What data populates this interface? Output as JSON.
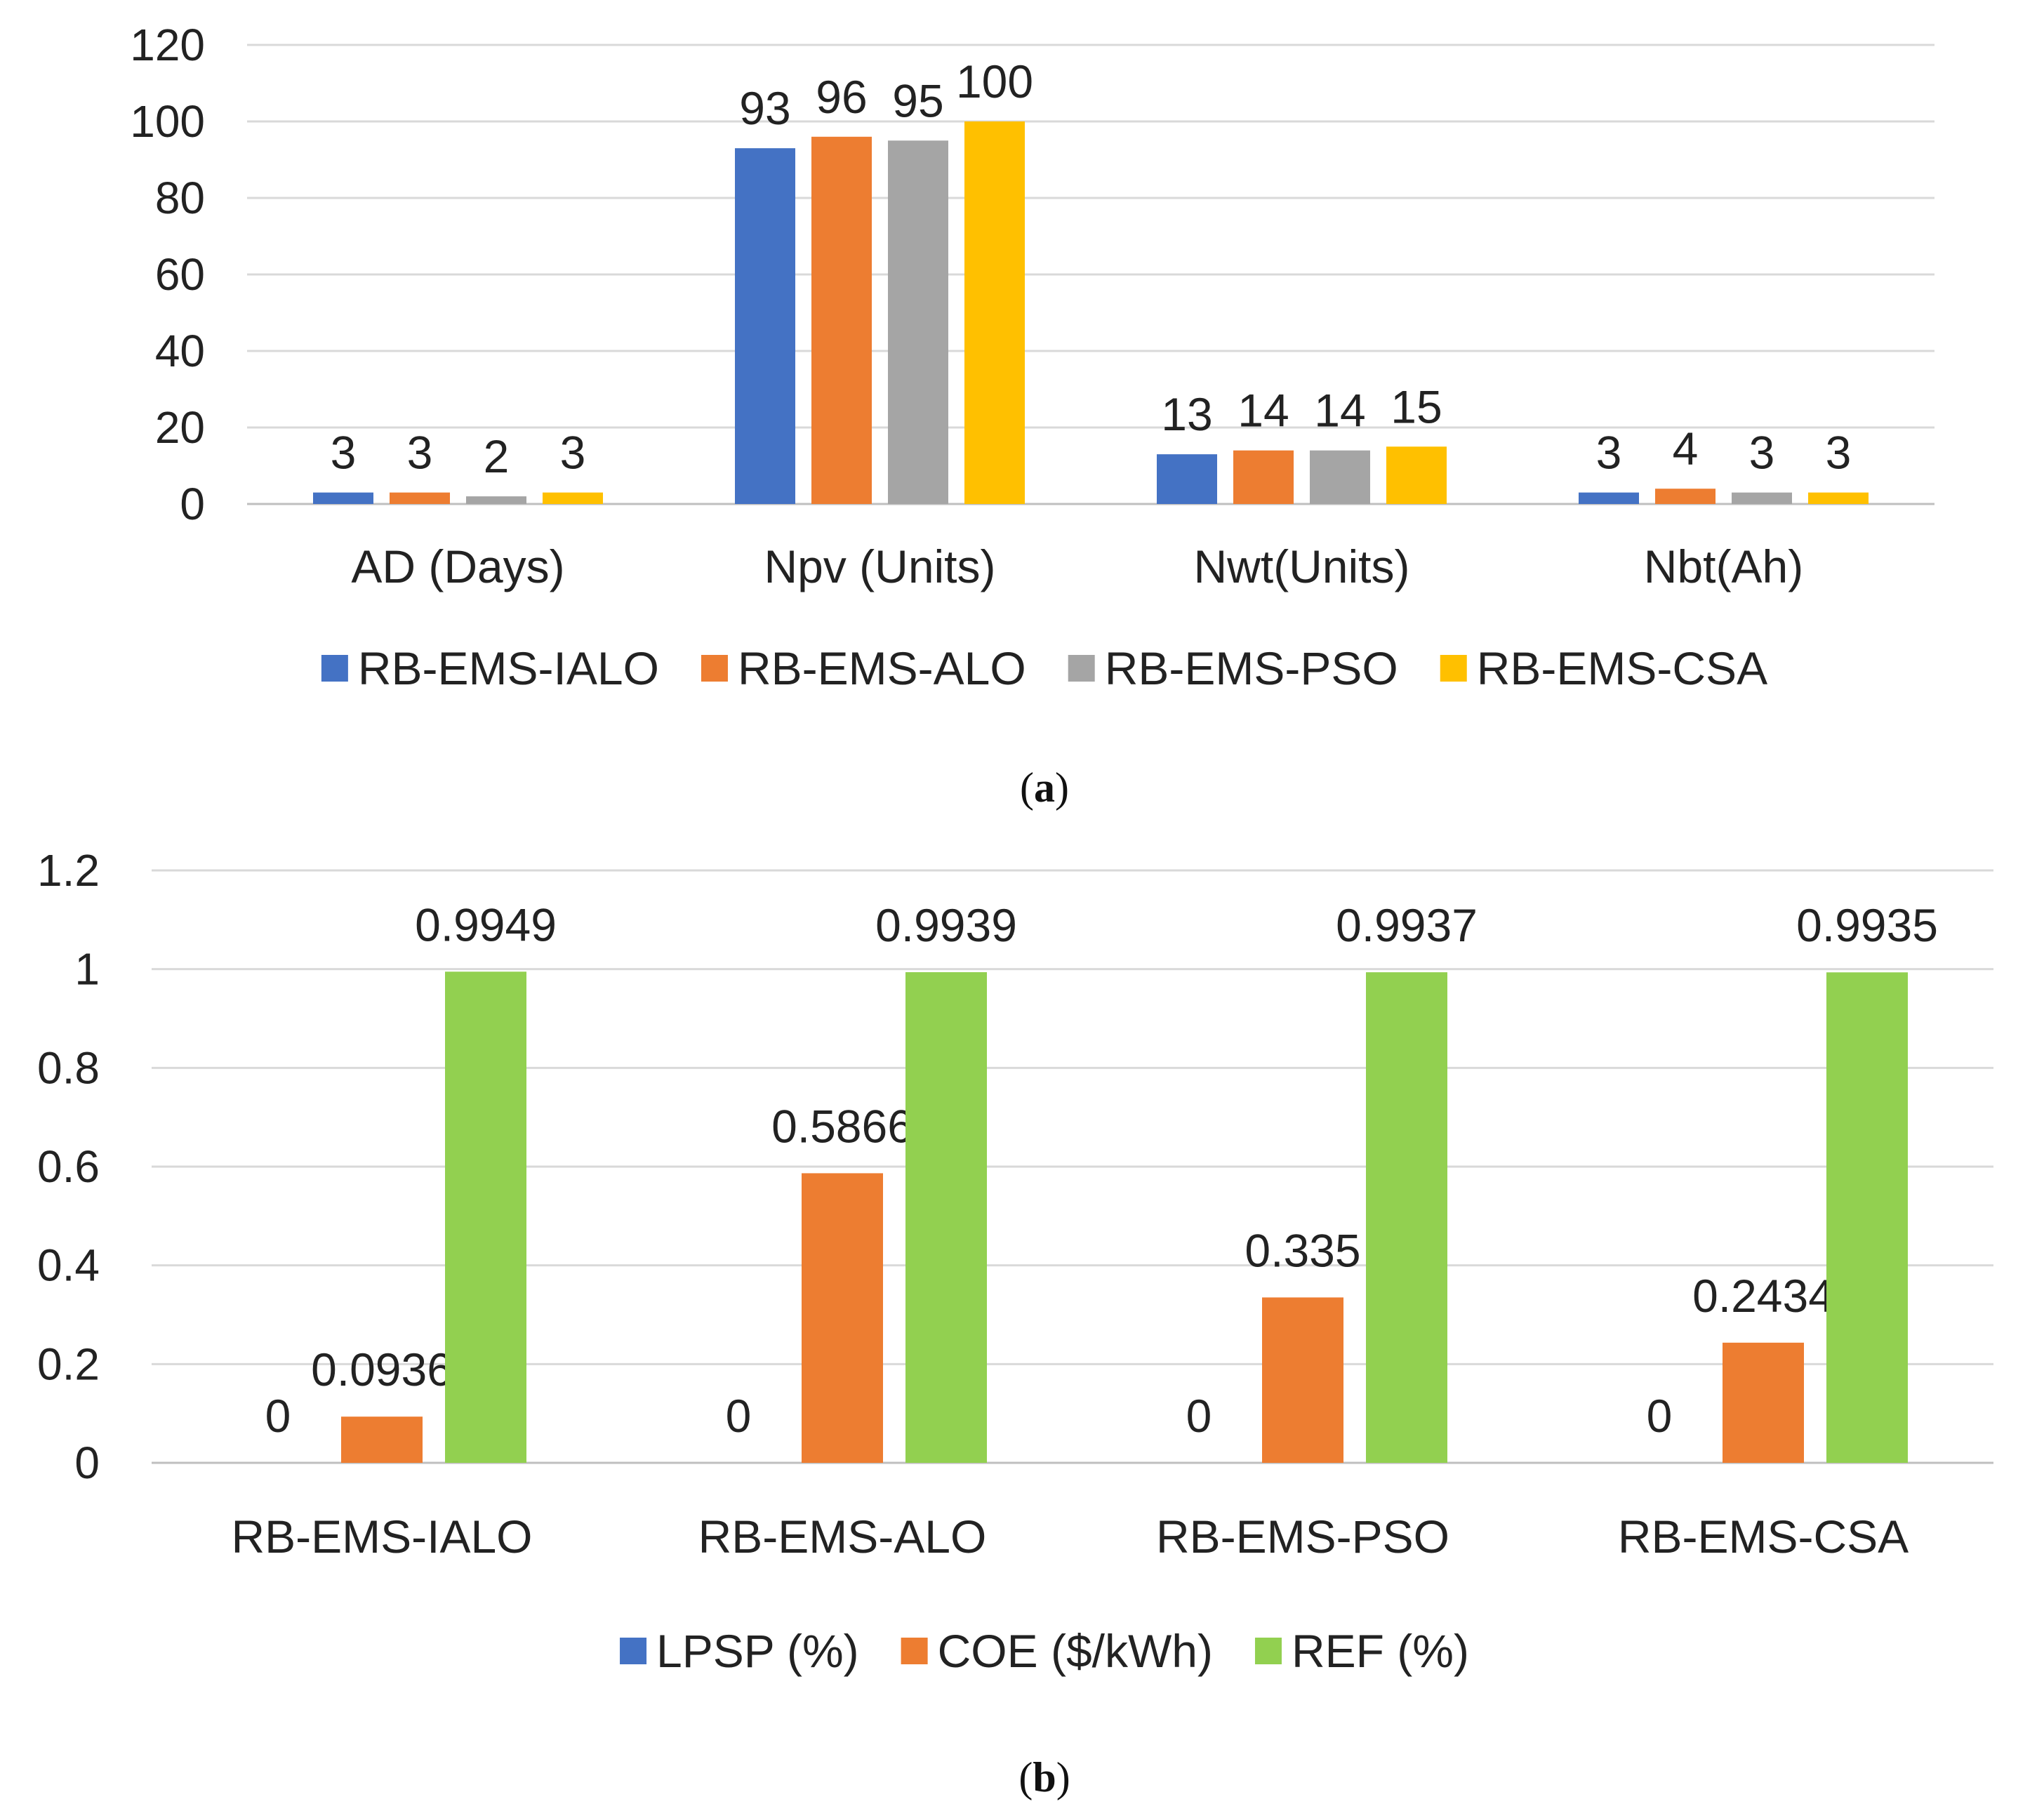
{
  "chart_data": [
    {
      "id": "a",
      "type": "bar",
      "caption": "a",
      "categories": [
        "AD (Days)",
        "Npv (Units)",
        "Nwt(Units)",
        "Nbt(Ah)"
      ],
      "series": [
        {
          "name": "RB-EMS-IALO",
          "color": "#4472c4",
          "values": [
            3,
            93,
            13,
            3
          ],
          "labels": [
            "3",
            "93",
            "13",
            "3"
          ]
        },
        {
          "name": "RB-EMS-ALO",
          "color": "#ed7d31",
          "values": [
            3,
            96,
            14,
            4
          ],
          "labels": [
            "3",
            "96",
            "14",
            "4"
          ]
        },
        {
          "name": "RB-EMS-PSO",
          "color": "#a5a5a5",
          "values": [
            2,
            95,
            14,
            3
          ],
          "labels": [
            "2",
            "95",
            "14",
            "3"
          ]
        },
        {
          "name": "RB-EMS-CSA",
          "color": "#ffc000",
          "values": [
            3,
            100,
            15,
            3
          ],
          "labels": [
            "3",
            "100",
            "15",
            "3"
          ]
        }
      ],
      "yticks": [
        "0",
        "20",
        "40",
        "60",
        "80",
        "100",
        "120"
      ],
      "ylim": [
        0,
        120
      ],
      "grid": true,
      "legend": "bottom"
    },
    {
      "id": "b",
      "type": "bar",
      "caption": "b",
      "categories": [
        "RB-EMS-IALO",
        "RB-EMS-ALO",
        "RB-EMS-PSO",
        "RB-EMS-CSA"
      ],
      "series": [
        {
          "name": "LPSP (%)",
          "color": "#4472c4",
          "values": [
            0,
            0,
            0,
            0
          ],
          "labels": [
            "0",
            "0",
            "0",
            "0"
          ]
        },
        {
          "name": "COE ($/kWh)",
          "color": "#ed7d31",
          "values": [
            0.0936,
            0.5866,
            0.335,
            0.2434
          ],
          "labels": [
            "0.0936",
            "0.5866",
            "0.335",
            "0.2434"
          ]
        },
        {
          "name": "REF (%)",
          "color": "#92d050",
          "values": [
            0.9949,
            0.9939,
            0.9937,
            0.9935
          ],
          "labels": [
            "0.9949",
            "0.9939",
            "0.9937",
            "0.9935"
          ]
        }
      ],
      "yticks": [
        "0",
        "0.2",
        "0.4",
        "0.6",
        "0.8",
        "1",
        "1.2"
      ],
      "ylim": [
        0,
        1.2
      ],
      "grid": true,
      "legend": "bottom"
    }
  ]
}
